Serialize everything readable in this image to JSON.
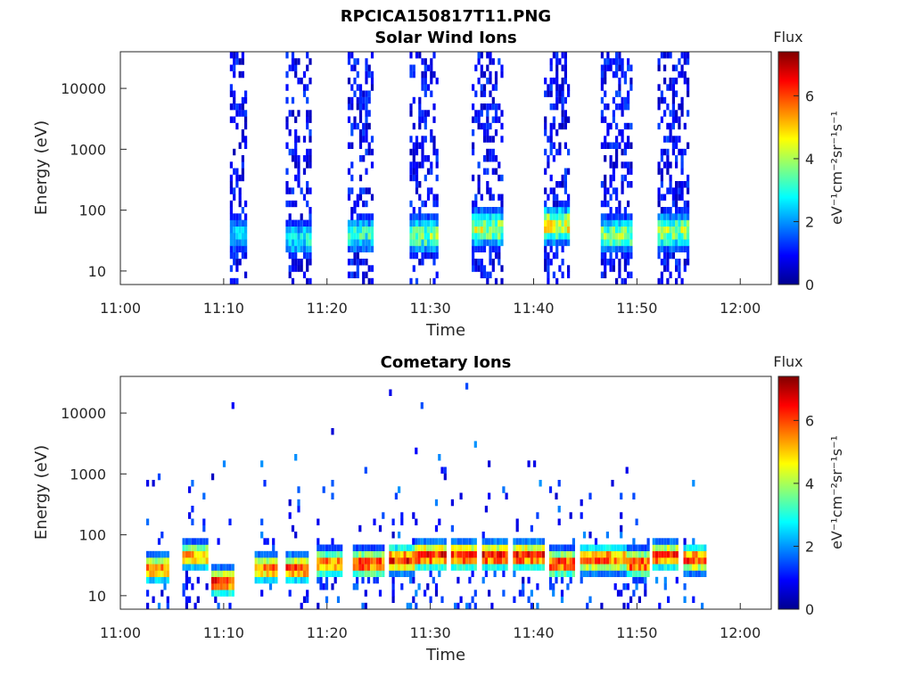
{
  "figure": {
    "title": "RPCICA150817T11.PNG"
  },
  "colormap": [
    "#00008f",
    "#0000ff",
    "#0080ff",
    "#00ffff",
    "#80ff80",
    "#ffff00",
    "#ff8000",
    "#ff0000",
    "#800000"
  ],
  "chart_data": [
    {
      "type": "heatmap",
      "title": "Solar Wind Ions",
      "xlabel": "Time",
      "ylabel": "Energy (eV)",
      "x_ticks": [
        "11:00",
        "11:10",
        "11:20",
        "11:30",
        "11:40",
        "11:50",
        "12:00"
      ],
      "y_ticks": [
        "10",
        "100",
        "1000",
        "10000"
      ],
      "x_range": [
        "11:00",
        "12:03"
      ],
      "y_range": [
        6,
        40000
      ],
      "y_scale": "log",
      "colorbar": {
        "label": "Flux",
        "units": "eV⁻¹cm⁻²sr⁻¹s⁻¹",
        "ticks": [
          "0",
          "2",
          "4",
          "6"
        ],
        "range": [
          0,
          7.4
        ]
      },
      "bursts": [
        {
          "t_start": 10.6,
          "t_end": 12.0,
          "peak_energy": 35,
          "peak_flux": 3.0
        },
        {
          "t_start": 16.0,
          "t_end": 18.5,
          "peak_energy": 30,
          "peak_flux": 3.5
        },
        {
          "t_start": 22.0,
          "t_end": 24.5,
          "peak_energy": 35,
          "peak_flux": 3.8
        },
        {
          "t_start": 28.0,
          "t_end": 30.8,
          "peak_energy": 35,
          "peak_flux": 4.5
        },
        {
          "t_start": 34.0,
          "t_end": 37.0,
          "peak_energy": 45,
          "peak_flux": 5.0
        },
        {
          "t_start": 41.0,
          "t_end": 43.5,
          "peak_energy": 50,
          "peak_flux": 5.5
        },
        {
          "t_start": 46.5,
          "t_end": 49.5,
          "peak_energy": 35,
          "peak_flux": 4.5
        },
        {
          "t_start": 52.0,
          "t_end": 55.0,
          "peak_energy": 40,
          "peak_flux": 4.8
        }
      ]
    },
    {
      "type": "heatmap",
      "title": "Cometary Ions",
      "xlabel": "Time",
      "ylabel": "Energy (eV)",
      "x_ticks": [
        "11:00",
        "11:10",
        "11:20",
        "11:30",
        "11:40",
        "11:50",
        "12:00"
      ],
      "y_ticks": [
        "10",
        "100",
        "1000",
        "10000"
      ],
      "x_range": [
        "11:00",
        "12:03"
      ],
      "y_range": [
        6,
        40000
      ],
      "y_scale": "log",
      "colorbar": {
        "label": "Flux",
        "units": "eV⁻¹cm⁻²sr⁻¹s⁻¹",
        "ticks": [
          "0",
          "2",
          "4",
          "6"
        ],
        "range": [
          0,
          7.4
        ]
      },
      "bursts": [
        {
          "t_start": 2.5,
          "t_end": 4.7,
          "peak_energy": 25,
          "peak_flux": 6.5
        },
        {
          "t_start": 6.0,
          "t_end": 8.5,
          "peak_energy": 40,
          "peak_flux": 6.0
        },
        {
          "t_start": 8.8,
          "t_end": 11.0,
          "peak_energy": 15,
          "peak_flux": 7.0
        },
        {
          "t_start": 13.0,
          "t_end": 15.0,
          "peak_energy": 25,
          "peak_flux": 6.5
        },
        {
          "t_start": 16.0,
          "t_end": 18.0,
          "peak_energy": 25,
          "peak_flux": 6.8
        },
        {
          "t_start": 19.0,
          "t_end": 21.5,
          "peak_energy": 30,
          "peak_flux": 6.5
        },
        {
          "t_start": 22.5,
          "t_end": 25.5,
          "peak_energy": 30,
          "peak_flux": 7.0
        },
        {
          "t_start": 26.0,
          "t_end": 28.5,
          "peak_energy": 35,
          "peak_flux": 7.2
        },
        {
          "t_start": 28.5,
          "t_end": 31.5,
          "peak_energy": 40,
          "peak_flux": 7.3
        },
        {
          "t_start": 32.0,
          "t_end": 34.5,
          "peak_energy": 40,
          "peak_flux": 7.2
        },
        {
          "t_start": 35.0,
          "t_end": 37.5,
          "peak_energy": 40,
          "peak_flux": 7.3
        },
        {
          "t_start": 38.0,
          "t_end": 41.0,
          "peak_energy": 40,
          "peak_flux": 7.3
        },
        {
          "t_start": 41.5,
          "t_end": 44.0,
          "peak_energy": 30,
          "peak_flux": 7.0
        },
        {
          "t_start": 44.5,
          "t_end": 47.5,
          "peak_energy": 35,
          "peak_flux": 6.8
        },
        {
          "t_start": 47.5,
          "t_end": 49.0,
          "peak_energy": 35,
          "peak_flux": 6.5
        },
        {
          "t_start": 49.0,
          "t_end": 51.0,
          "peak_energy": 30,
          "peak_flux": 7.0
        },
        {
          "t_start": 51.5,
          "t_end": 54.0,
          "peak_energy": 40,
          "peak_flux": 7.0
        },
        {
          "t_start": 54.5,
          "t_end": 56.5,
          "peak_energy": 35,
          "peak_flux": 6.8
        }
      ]
    }
  ]
}
